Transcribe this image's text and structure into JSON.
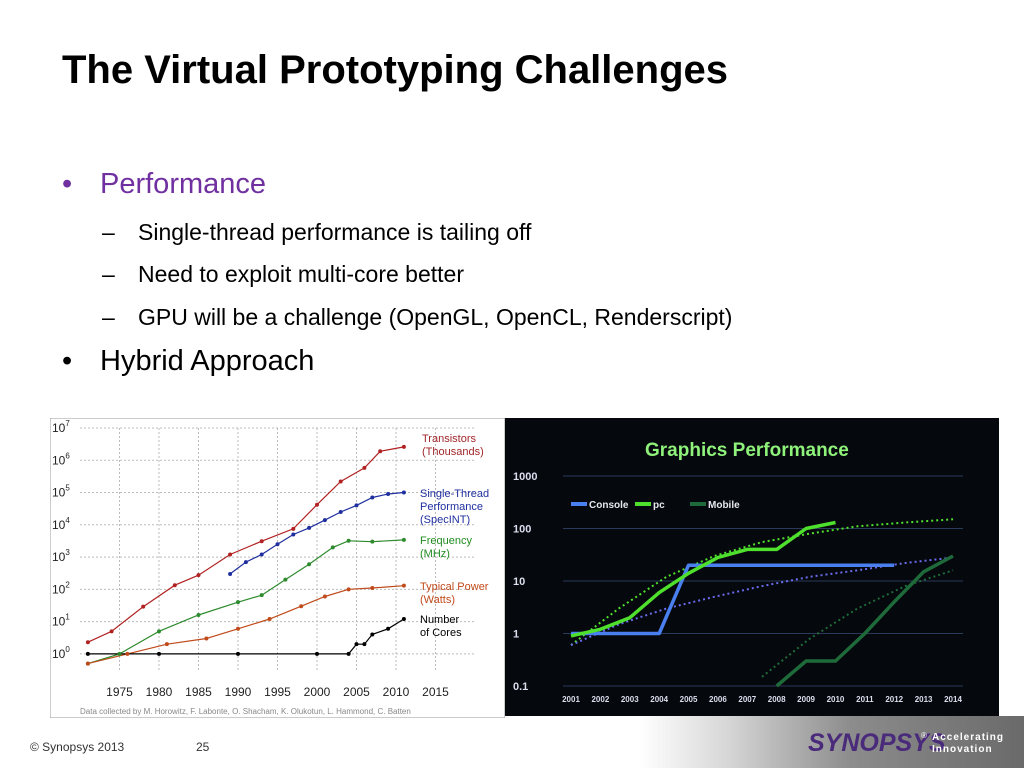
{
  "slide": {
    "title": "The Virtual Prototyping Challenges",
    "bullets": [
      {
        "text": "Performance",
        "color": "#7030a0",
        "sub": [
          "Single-thread performance is tailing off",
          "Need to exploit multi-core better",
          "GPU will be a challenge (OpenGL, OpenCL, Renderscript)"
        ]
      },
      {
        "text": "Hybrid Approach",
        "color": "#000000",
        "sub": []
      }
    ],
    "bullet_glyph": "•",
    "dash_glyph": "–"
  },
  "footer": {
    "copyright": "© Synopsys 2013",
    "page": "25",
    "logo_word": "SYNOPSYS",
    "logo_mark": "®",
    "tagline_1": "Accelerating",
    "tagline_2": "Innovation"
  },
  "chart_data": [
    {
      "type": "scatter",
      "x_ticks": [
        "1975",
        "1980",
        "1985",
        "1990",
        "1995",
        "2000",
        "2005",
        "2010",
        "2015"
      ],
      "y_ticks": [
        "10^0",
        "10^1",
        "10^2",
        "10^3",
        "10^4",
        "10^5",
        "10^6",
        "10^7"
      ],
      "log_scale_y": true,
      "grid": true,
      "legend_labels": [
        {
          "lines": [
            "Transistors",
            "(Thousands)"
          ],
          "color": "#a0262a"
        },
        {
          "lines": [
            "Single-Thread",
            "Performance",
            "(SpecINT)"
          ],
          "color": "#1f2f9f"
        },
        {
          "lines": [
            "Frequency",
            "(MHz)"
          ],
          "color": "#218c21"
        },
        {
          "lines": [
            "Typical Power",
            "(Watts)"
          ],
          "color": "#c04a1a"
        },
        {
          "lines": [
            "Number",
            "of Cores"
          ],
          "color": "#000000"
        }
      ],
      "series": [
        {
          "name": "Transistors (Thousands)",
          "color": "#b22222",
          "x": [
            1971,
            1974,
            1978,
            1982,
            1985,
            1989,
            1993,
            1997,
            2000,
            2003,
            2006,
            2008,
            2011
          ],
          "y": [
            2.3,
            5,
            29,
            134,
            275,
            1200,
            3100,
            7500,
            42000,
            220000,
            580000,
            1900000,
            2600000
          ]
        },
        {
          "name": "Single-Thread Performance (SpecINT)",
          "color": "#1f2f9f",
          "x": [
            1989,
            1991,
            1993,
            1995,
            1997,
            1999,
            2001,
            2003,
            2005,
            2007,
            2009,
            2011
          ],
          "y": [
            300,
            700,
            1200,
            2500,
            5000,
            8000,
            14000,
            25000,
            40000,
            70000,
            90000,
            100000
          ]
        },
        {
          "name": "Frequency (MHz)",
          "color": "#2e8b2e",
          "x": [
            1971,
            1975,
            1980,
            1985,
            1990,
            1993,
            1996,
            1999,
            2002,
            2004,
            2007,
            2011
          ],
          "y": [
            0.5,
            1,
            5,
            16,
            40,
            66,
            200,
            600,
            2000,
            3200,
            3000,
            3400
          ]
        },
        {
          "name": "Typical Power (Watts)",
          "color": "#c04a1a",
          "x": [
            1971,
            1976,
            1981,
            1986,
            1990,
            1994,
            1998,
            2001,
            2004,
            2007,
            2011
          ],
          "y": [
            0.5,
            1,
            2,
            3,
            6,
            12,
            30,
            60,
            100,
            110,
            130
          ]
        },
        {
          "name": "Number of Cores",
          "color": "#000000",
          "x": [
            1971,
            1980,
            1990,
            2000,
            2004,
            2005,
            2006,
            2007,
            2009,
            2011
          ],
          "y": [
            1,
            1,
            1,
            1,
            1,
            2,
            2,
            4,
            6,
            12
          ]
        }
      ],
      "footnote": "Data collected by M. Horowitz, F. Labonte, O. Shacham, K. Olukotun, L. Hammond, C. Batten"
    },
    {
      "type": "line",
      "title": "Graphics Performance",
      "x": [
        "2001",
        "2002",
        "2003",
        "2004",
        "2005",
        "2006",
        "2007",
        "2008",
        "2009",
        "2010",
        "2011",
        "2012",
        "2013",
        "2014"
      ],
      "y_ticks": [
        "1000",
        "100",
        "10",
        "1",
        "0.1"
      ],
      "log_scale_y": true,
      "ylim": [
        0.1,
        1000
      ],
      "series": [
        {
          "name": "Console",
          "color": "#4a7ff0",
          "values": [
            1,
            1,
            1,
            1,
            20,
            20,
            20,
            20,
            20,
            20,
            20,
            20,
            null,
            null
          ]
        },
        {
          "name": "pc",
          "color": "#4fe02e",
          "values": [
            0.9,
            1.2,
            2,
            6,
            14,
            28,
            40,
            40,
            100,
            130,
            null,
            null,
            null,
            null
          ]
        },
        {
          "name": "Mobile",
          "color": "#1f6a3a",
          "values": [
            null,
            null,
            null,
            null,
            null,
            null,
            null,
            0.1,
            0.3,
            0.3,
            1,
            4,
            15,
            30
          ]
        }
      ]
    }
  ]
}
